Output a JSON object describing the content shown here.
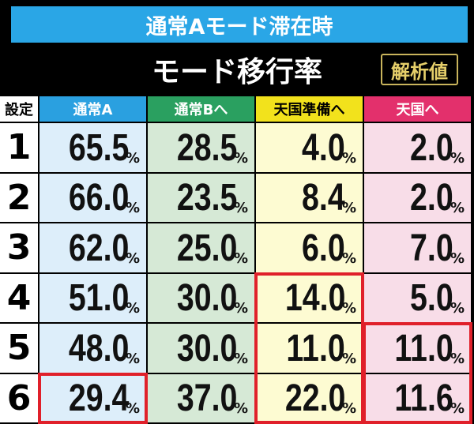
{
  "header": {
    "banner": "通常Aモード滞在時",
    "title": "モード移行率",
    "badge": "解析値"
  },
  "table": {
    "corner": "設定",
    "unit": "%",
    "columns": [
      "通常A",
      "通常Bへ",
      "天国準備へ",
      "天国へ"
    ],
    "rows": [
      {
        "label": "1",
        "cells": [
          "65.5",
          "28.5",
          "4.0",
          "2.0"
        ]
      },
      {
        "label": "2",
        "cells": [
          "66.0",
          "23.5",
          "8.4",
          "2.0"
        ]
      },
      {
        "label": "3",
        "cells": [
          "62.0",
          "25.0",
          "6.0",
          "7.0"
        ]
      },
      {
        "label": "4",
        "cells": [
          "51.0",
          "30.0",
          "14.0",
          "5.0"
        ]
      },
      {
        "label": "5",
        "cells": [
          "48.0",
          "30.0",
          "11.0",
          "11.0"
        ]
      },
      {
        "label": "6",
        "cells": [
          "29.4",
          "37.0",
          "22.0",
          "11.6"
        ]
      }
    ]
  }
}
